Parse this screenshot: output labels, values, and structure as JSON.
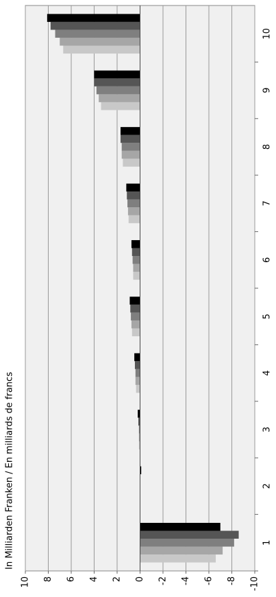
{
  "chart_data": {
    "type": "bar",
    "title": "In Milliarden Franken / En milliards de francs",
    "categories": [
      "1",
      "2",
      "3",
      "4",
      "5",
      "6",
      "7",
      "8",
      "9",
      "10"
    ],
    "series": [
      {
        "color": "#c8c8c8",
        "values": [
          -6.6,
          0,
          0.1,
          0.35,
          0.7,
          0.6,
          1.0,
          1.5,
          3.4,
          6.7
        ]
      },
      {
        "color": "#a6a6a6",
        "values": [
          -7.2,
          0,
          0.1,
          0.4,
          0.75,
          0.6,
          1.05,
          1.6,
          3.6,
          7.0
        ]
      },
      {
        "color": "#7f7f7f",
        "values": [
          -8.2,
          0,
          0.1,
          0.4,
          0.8,
          0.65,
          1.1,
          1.6,
          3.8,
          7.4
        ]
      },
      {
        "color": "#555555",
        "values": [
          -8.6,
          0,
          0.15,
          0.45,
          0.85,
          0.7,
          1.15,
          1.7,
          4.0,
          7.8
        ]
      },
      {
        "color": "#000000",
        "values": [
          -7.0,
          -0.1,
          0.2,
          0.5,
          0.9,
          0.75,
          1.2,
          1.7,
          4.0,
          8.1
        ]
      }
    ],
    "ylim": [
      -10,
      10
    ],
    "yticks": [
      -10,
      -8,
      -6,
      -4,
      -2,
      0,
      2,
      4,
      6,
      8,
      10
    ],
    "grid": true
  }
}
